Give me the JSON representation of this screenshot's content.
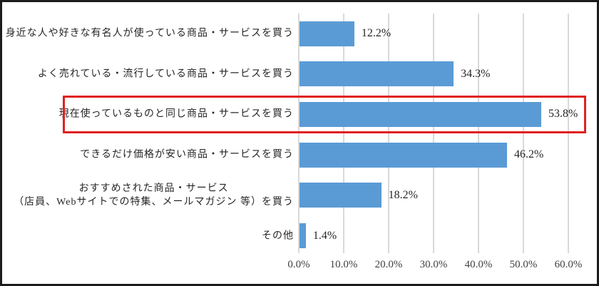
{
  "frame": {
    "background": "#ffffff",
    "border_color": "#1c1c1c"
  },
  "chart_data": {
    "type": "bar",
    "orientation": "horizontal",
    "title": "",
    "xlabel": "",
    "ylabel": "",
    "xlim": [
      0,
      60
    ],
    "grid": true,
    "categories": [
      "身近な人や好きな有名人が使っている商品・サービスを買う",
      "よく売れている・流行している商品・サービスを買う",
      "現在使っているものと同じ商品・サービスを買う",
      "できるだけ価格が安い商品・サービスを買う",
      "おすすめされた商品・サービス\n（店員、Webサイトでの特集、メールマガジン 等）を買う",
      "その他"
    ],
    "values": [
      12.2,
      34.3,
      53.8,
      46.2,
      18.2,
      1.4
    ],
    "value_labels": [
      "12.2%",
      "34.3%",
      "53.8%",
      "46.2%",
      "18.2%",
      "1.4%"
    ],
    "x_tick_values": [
      0,
      10,
      20,
      30,
      40,
      50,
      60
    ],
    "x_ticks": [
      "0.0%",
      "10.0%",
      "20.0%",
      "30.0%",
      "40.0%",
      "50.0%",
      "60.0%"
    ],
    "bar_color": "#5B9BD5",
    "gridline_color": "#D9D9D9",
    "label_color": "#262626",
    "axis_text_color": "#404040",
    "highlight": {
      "category_index": 2,
      "box_color": "#E02020",
      "meaning": "highlighted-row"
    }
  }
}
